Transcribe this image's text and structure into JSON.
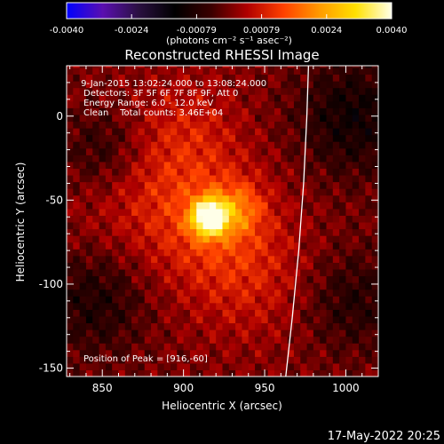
{
  "colorbar": {
    "ticks": [
      "-0.0040",
      "-0.0024",
      "-0.00079",
      "0.00079",
      "0.0024",
      "0.0040"
    ],
    "unit_label": "(photons cm⁻² s⁻¹ asec⁻²)",
    "colors": [
      "#0000ff",
      "#5a0fb0",
      "#2a1040",
      "#000000",
      "#3a0000",
      "#b00000",
      "#ff4000",
      "#ff9a00",
      "#ffe000",
      "#ffffe8"
    ]
  },
  "chart_data": {
    "type": "heatmap",
    "title": "Reconstructed RHESSI Image",
    "xlabel": "Heliocentric X (arcsec)",
    "ylabel": "Heliocentric Y (arcsec)",
    "xlim": [
      828,
      1020
    ],
    "ylim": [
      -155,
      30
    ],
    "x_ticks": [
      850,
      900,
      950,
      1000
    ],
    "y_ticks": [
      0,
      -50,
      -100,
      -150
    ],
    "value_range": [
      -0.004,
      0.004
    ],
    "peak": [
      916,
      -60
    ],
    "limb_curve": [
      [
        963,
        -155
      ],
      [
        967,
        -120
      ],
      [
        971,
        -80
      ],
      [
        974,
        -40
      ],
      [
        976,
        0
      ],
      [
        977,
        30
      ]
    ],
    "annotations": [
      " 9-Jan-2015 13:02:24.000 to 13:08:24.000",
      "Detectors: 3F 5F 6F 7F 8F 9F, Att 0",
      "Energy Range: 6.0 - 12.0 keV",
      "Clean    Total counts: 3.46E+04"
    ],
    "peak_label": "Position of Peak = [916,-60]"
  },
  "footer": {
    "date": "17-May-2022 20:25"
  }
}
